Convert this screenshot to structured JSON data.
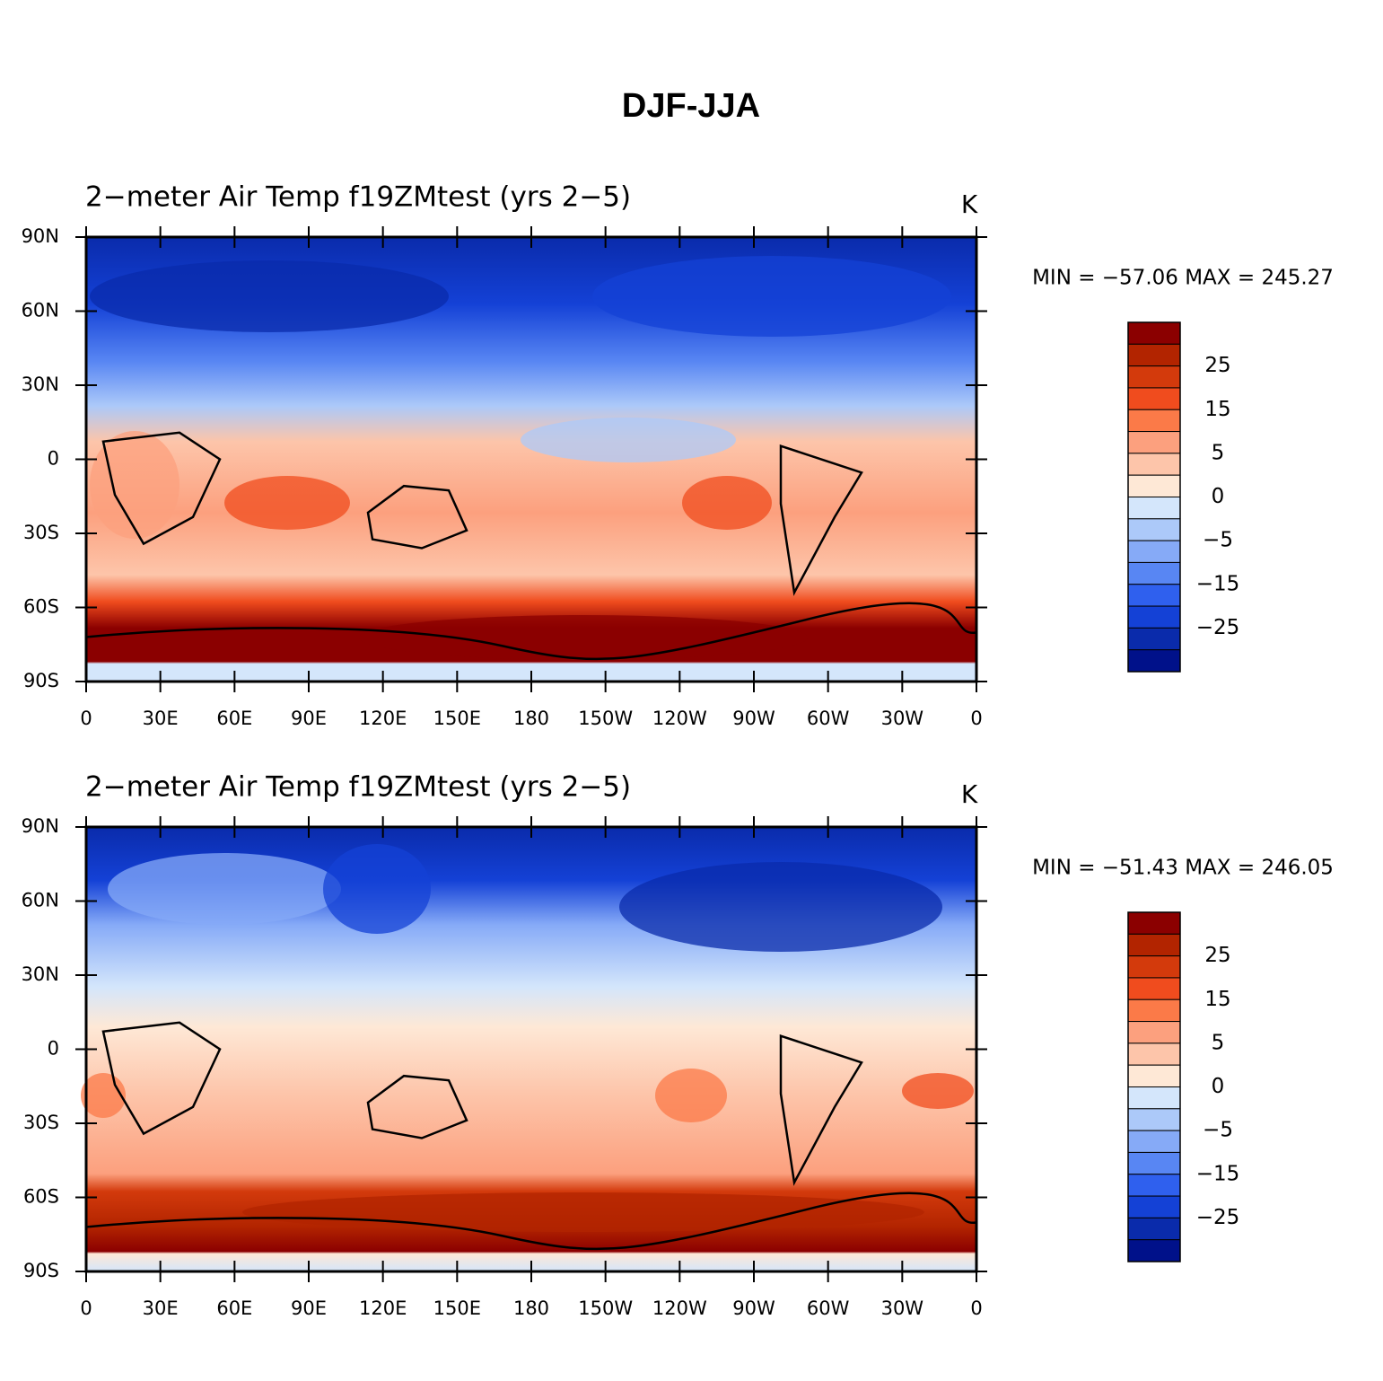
{
  "title": "DJF-JJA",
  "panels": [
    {
      "title": "2−meter Air Temp f19ZMtest (yrs 2−5)",
      "units": "K",
      "stats": "MIN = −57.06  MAX = 245.27"
    },
    {
      "title": "2−meter Air Temp f19ZMtest (yrs 2−5)",
      "units": "K",
      "stats": "MIN = −51.43  MAX = 246.05"
    }
  ],
  "lat_ticks": [
    {
      "value": 90,
      "label": "90N"
    },
    {
      "value": 60,
      "label": "60N"
    },
    {
      "value": 30,
      "label": "30N"
    },
    0,
    {
      "value": -30,
      "label": "30S"
    },
    {
      "value": -60,
      "label": "60S"
    },
    {
      "value": -90,
      "label": "90S"
    }
  ],
  "lon_ticks": [
    0,
    {
      "value": 30,
      "label": "30E"
    },
    {
      "value": 60,
      "label": "60E"
    },
    {
      "value": 90,
      "label": "90E"
    },
    {
      "value": 120,
      "label": "120E"
    },
    {
      "value": 150,
      "label": "150E"
    },
    180,
    {
      "value": 210,
      "label": "150W"
    },
    {
      "value": 240,
      "label": "120W"
    },
    {
      "value": 270,
      "label": "90W"
    },
    {
      "value": 300,
      "label": "60W"
    },
    {
      "value": 330,
      "label": "30W"
    },
    {
      "value": 360,
      "label": "0"
    }
  ],
  "colorbar": {
    "colors": [
      "#8b0000",
      "#b22400",
      "#d33a0c",
      "#f04c1e",
      "#fb7a48",
      "#fca07e",
      "#fdc5aa",
      "#fee8d6",
      "#d4e6fb",
      "#acc9f9",
      "#86aaf7",
      "#5886f3",
      "#2f60ee",
      "#1441d6",
      "#0a2bab",
      "#00118a"
    ],
    "labels": [
      25,
      15,
      5,
      0,
      {
        "value": -5,
        "label": "−5"
      },
      {
        "value": -15,
        "label": "−15"
      },
      {
        "value": -25,
        "label": "−25"
      }
    ]
  }
}
